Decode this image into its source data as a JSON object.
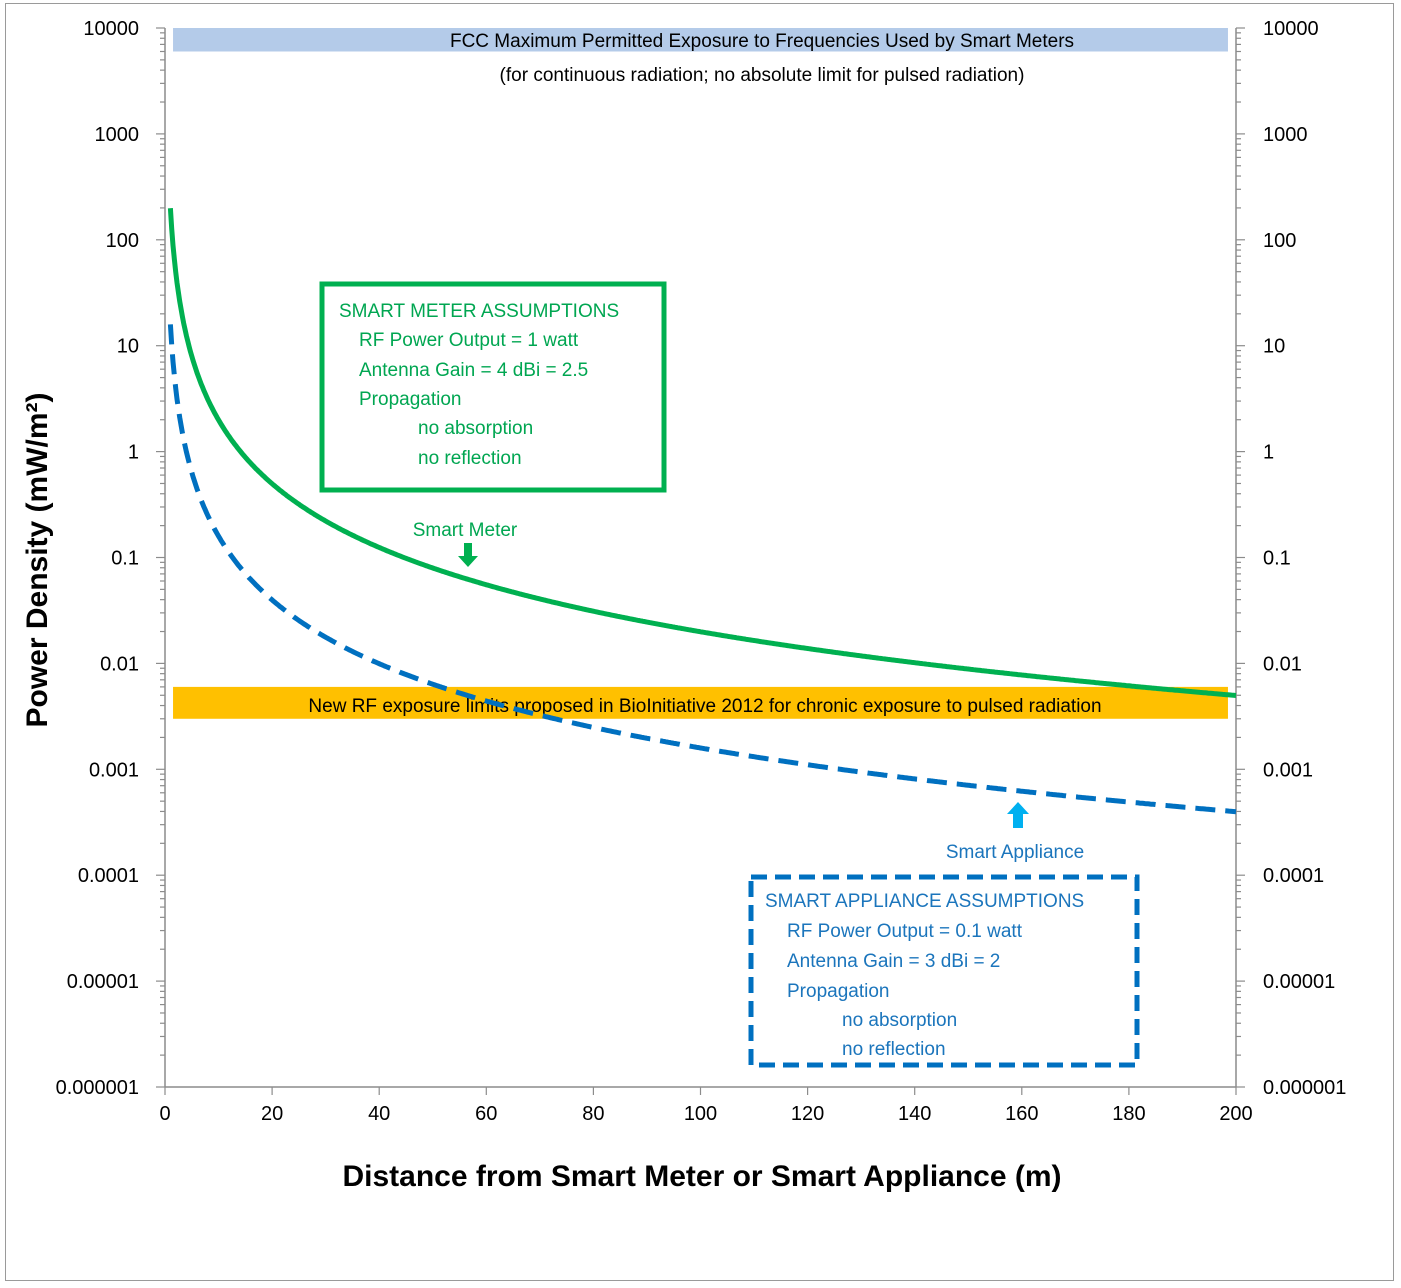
{
  "colors": {
    "meter": "#00b050",
    "appliance": "#0070c0",
    "fcc_band": "#b4cbe9",
    "bio_band": "#ffc000",
    "appliance_arrow": "#00b0f0"
  },
  "chart_data": {
    "type": "line",
    "xlabel": "Distance from Smart Meter or Smart Appliance (m)",
    "ylabel": "Power Density (mW/m²)",
    "xlim": [
      0,
      200
    ],
    "ylim": [
      1e-06,
      10000
    ],
    "yscale": "log",
    "secondary_y_axis": true,
    "grid": false,
    "x_ticks": [
      "0",
      "20",
      "40",
      "60",
      "80",
      "100",
      "120",
      "140",
      "160",
      "180",
      "200"
    ],
    "y_ticks": [
      "10000",
      "1000",
      "100",
      "10",
      "1",
      "0.1",
      "0.01",
      "0.001",
      "0.0001",
      "0.00001",
      "0.000001"
    ],
    "series": [
      {
        "name": "Smart Meter",
        "style": "solid",
        "color": "#00b050",
        "x": [
          1,
          2,
          3,
          5,
          10,
          20,
          30,
          40,
          50,
          60,
          70,
          80,
          90,
          100,
          120,
          140,
          160,
          180,
          200
        ],
        "y": [
          199,
          49.7,
          22.1,
          7.96,
          1.99,
          0.497,
          0.221,
          0.124,
          0.0796,
          0.0553,
          0.0406,
          0.0311,
          0.0246,
          0.0199,
          0.0138,
          0.0102,
          0.00777,
          0.00614,
          0.00497
        ]
      },
      {
        "name": "Smart Appliance",
        "style": "dashed",
        "color": "#0070c0",
        "x": [
          1,
          2,
          3,
          5,
          10,
          20,
          30,
          40,
          50,
          60,
          70,
          80,
          90,
          100,
          120,
          140,
          160,
          180,
          200
        ],
        "y": [
          15.9,
          3.98,
          1.77,
          0.637,
          0.159,
          0.0398,
          0.0177,
          0.00995,
          0.00637,
          0.00442,
          0.00325,
          0.00249,
          0.00197,
          0.00159,
          0.00111,
          0.000812,
          0.000622,
          0.000491,
          0.000398
        ]
      }
    ],
    "bands": [
      {
        "label_line1": "FCC Maximum Permitted Exposure to Frequencies Used by Smart Meters",
        "label_line2": "(for continuous  radiation; no absolute limit for pulsed radiation)",
        "y_from": 6000,
        "y_to": 10000
      },
      {
        "label_line1": "New  RF exposure limits proposed in BioInitiative 2012 for chronic exposure to pulsed radiation",
        "y_from": 0.003,
        "y_to": 0.006
      }
    ],
    "annotations": {
      "meter_label": "Smart Meter",
      "appliance_label": "Smart Appliance",
      "meter_box": {
        "title": "SMART METER ASSUMPTIONS",
        "lines": [
          "RF Power  Output = 1 watt",
          "Antenna Gain =  4 dBi = 2.5",
          "Propagation",
          "no absorption",
          "no reflection"
        ]
      },
      "appliance_box": {
        "title": "SMART APPLIANCE ASSUMPTIONS",
        "lines": [
          "RF Power Output = 0.1 watt",
          "Antenna Gain = 3 dBi = 2",
          "Propagation",
          "no absorption",
          "no reflection"
        ]
      }
    }
  }
}
